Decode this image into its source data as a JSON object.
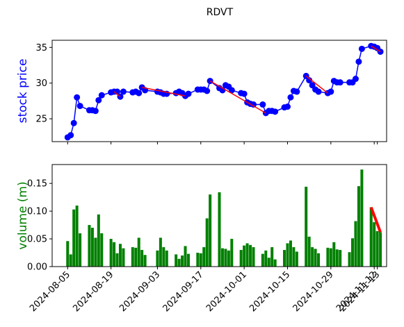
{
  "chart_data": [
    {
      "type": "line",
      "title": "RDVT",
      "ylabel": "stock price",
      "ylabel_color": "#0000ff",
      "x": [
        "2024-08-05",
        "2024-08-06",
        "2024-08-07",
        "2024-08-08",
        "2024-08-09",
        "2024-08-12",
        "2024-08-13",
        "2024-08-14",
        "2024-08-15",
        "2024-08-16",
        "2024-08-19",
        "2024-08-20",
        "2024-08-21",
        "2024-08-22",
        "2024-08-23",
        "2024-08-26",
        "2024-08-27",
        "2024-08-28",
        "2024-08-29",
        "2024-08-30",
        "2024-09-03",
        "2024-09-04",
        "2024-09-05",
        "2024-09-06",
        "2024-09-09",
        "2024-09-10",
        "2024-09-11",
        "2024-09-12",
        "2024-09-13",
        "2024-09-16",
        "2024-09-17",
        "2024-09-18",
        "2024-09-19",
        "2024-09-20",
        "2024-09-23",
        "2024-09-24",
        "2024-09-25",
        "2024-09-26",
        "2024-09-27",
        "2024-09-30",
        "2024-10-01",
        "2024-10-02",
        "2024-10-03",
        "2024-10-04",
        "2024-10-07",
        "2024-10-08",
        "2024-10-09",
        "2024-10-10",
        "2024-10-11",
        "2024-10-14",
        "2024-10-15",
        "2024-10-16",
        "2024-10-17",
        "2024-10-18",
        "2024-10-21",
        "2024-10-22",
        "2024-10-23",
        "2024-10-24",
        "2024-10-25",
        "2024-10-28",
        "2024-10-29",
        "2024-10-30",
        "2024-10-31",
        "2024-11-01",
        "2024-11-04",
        "2024-11-05",
        "2024-11-06",
        "2024-11-07",
        "2024-11-08",
        "2024-11-11",
        "2024-11-12",
        "2024-11-13",
        "2024-11-14"
      ],
      "series": [
        {
          "color": "#0000ff",
          "values": [
            22.4,
            22.7,
            24.4,
            28.0,
            26.8,
            26.2,
            26.2,
            26.1,
            27.6,
            28.3,
            28.7,
            28.8,
            28.8,
            28.1,
            28.8,
            28.7,
            28.8,
            28.6,
            29.4,
            29.0,
            28.8,
            28.7,
            28.5,
            28.5,
            28.6,
            28.8,
            28.6,
            28.2,
            28.5,
            29.1,
            29.1,
            29.1,
            28.9,
            30.3,
            29.3,
            29.0,
            29.7,
            29.5,
            29.0,
            28.6,
            28.5,
            27.3,
            27.1,
            27.0,
            27.0,
            25.8,
            26.1,
            26.1,
            26.0,
            26.6,
            26.7,
            28.0,
            28.9,
            28.8,
            31.0,
            30.4,
            29.7,
            29.1,
            28.8,
            28.6,
            28.8,
            30.3,
            30.1,
            30.1,
            30.1,
            30.1,
            30.6,
            33.0,
            34.8,
            35.2,
            35.1,
            34.9,
            34.4
          ]
        }
      ],
      "trend_lines": [
        {
          "color": "#ff0000",
          "x": [
            "2024-08-20",
            "2024-08-22"
          ],
          "values": [
            28.8,
            28.1
          ]
        },
        {
          "color": "#ff0000",
          "x": [
            "2024-08-29",
            "2024-09-12"
          ],
          "values": [
            29.4,
            28.2
          ]
        },
        {
          "color": "#ff0000",
          "x": [
            "2024-09-20",
            "2024-10-08"
          ],
          "values": [
            30.3,
            25.8
          ]
        },
        {
          "color": "#ff0000",
          "x": [
            "2024-10-21",
            "2024-10-28"
          ],
          "values": [
            31.0,
            28.6
          ]
        },
        {
          "color": "#ff0000",
          "x": [
            "2024-11-11",
            "2024-11-14"
          ],
          "values": [
            35.2,
            34.4
          ]
        }
      ],
      "xlim": [
        "2024-07-31",
        "2024-11-16"
      ],
      "ylim": [
        21.8,
        36.0
      ],
      "yticks": [
        25,
        30,
        35
      ]
    },
    {
      "type": "bar",
      "ylabel": "volume (m)",
      "ylabel_color": "#008000",
      "x": [
        "2024-08-05",
        "2024-08-06",
        "2024-08-07",
        "2024-08-08",
        "2024-08-09",
        "2024-08-12",
        "2024-08-13",
        "2024-08-14",
        "2024-08-15",
        "2024-08-16",
        "2024-08-19",
        "2024-08-20",
        "2024-08-21",
        "2024-08-22",
        "2024-08-23",
        "2024-08-26",
        "2024-08-27",
        "2024-08-28",
        "2024-08-29",
        "2024-08-30",
        "2024-09-03",
        "2024-09-04",
        "2024-09-05",
        "2024-09-06",
        "2024-09-09",
        "2024-09-10",
        "2024-09-11",
        "2024-09-12",
        "2024-09-13",
        "2024-09-16",
        "2024-09-17",
        "2024-09-18",
        "2024-09-19",
        "2024-09-20",
        "2024-09-23",
        "2024-09-24",
        "2024-09-25",
        "2024-09-26",
        "2024-09-27",
        "2024-09-30",
        "2024-10-01",
        "2024-10-02",
        "2024-10-03",
        "2024-10-04",
        "2024-10-07",
        "2024-10-08",
        "2024-10-09",
        "2024-10-10",
        "2024-10-11",
        "2024-10-14",
        "2024-10-15",
        "2024-10-16",
        "2024-10-17",
        "2024-10-18",
        "2024-10-21",
        "2024-10-22",
        "2024-10-23",
        "2024-10-24",
        "2024-10-25",
        "2024-10-28",
        "2024-10-29",
        "2024-10-30",
        "2024-10-31",
        "2024-11-01",
        "2024-11-04",
        "2024-11-05",
        "2024-11-06",
        "2024-11-07",
        "2024-11-08",
        "2024-11-11",
        "2024-11-12",
        "2024-11-13",
        "2024-11-14"
      ],
      "series": [
        {
          "color": "#008000",
          "values": [
            0.046,
            0.022,
            0.103,
            0.11,
            0.06,
            0.075,
            0.07,
            0.052,
            0.094,
            0.06,
            0.05,
            0.044,
            0.024,
            0.041,
            0.033,
            0.035,
            0.034,
            0.052,
            0.03,
            0.021,
            0.029,
            0.052,
            0.035,
            0.029,
            0.022,
            0.014,
            0.02,
            0.037,
            0.023,
            0.025,
            0.024,
            0.035,
            0.087,
            0.13,
            0.134,
            0.033,
            0.032,
            0.029,
            0.05,
            0.03,
            0.038,
            0.042,
            0.039,
            0.035,
            0.023,
            0.029,
            0.016,
            0.035,
            0.013,
            0.03,
            0.042,
            0.047,
            0.035,
            0.027,
            0.144,
            0.054,
            0.035,
            0.032,
            0.024,
            0.034,
            0.033,
            0.044,
            0.031,
            0.03,
            0.026,
            0.051,
            0.082,
            0.145,
            0.175,
            0.107,
            0.08,
            0.064,
            0.062
          ]
        }
      ],
      "trend_lines": [
        {
          "color": "#ff0000",
          "x": [
            "2024-11-11",
            "2024-11-14"
          ],
          "values": [
            0.107,
            0.062
          ]
        }
      ],
      "xlim": [
        "2024-07-31",
        "2024-11-16"
      ],
      "ylim": [
        0,
        0.184
      ],
      "yticks": [
        {
          "value": 0,
          "label": "0.00"
        },
        0.05,
        {
          "value": 0.1,
          "label": "0.10"
        },
        {
          "value": 0.15,
          "label": "0.15"
        }
      ],
      "xticks": [
        "2024-08-05",
        "2024-08-19",
        "2024-09-03",
        "2024-09-17",
        "2024-10-01",
        "2024-10-15",
        "2024-10-29",
        "2024-11-12",
        "2024-11-13"
      ]
    }
  ]
}
